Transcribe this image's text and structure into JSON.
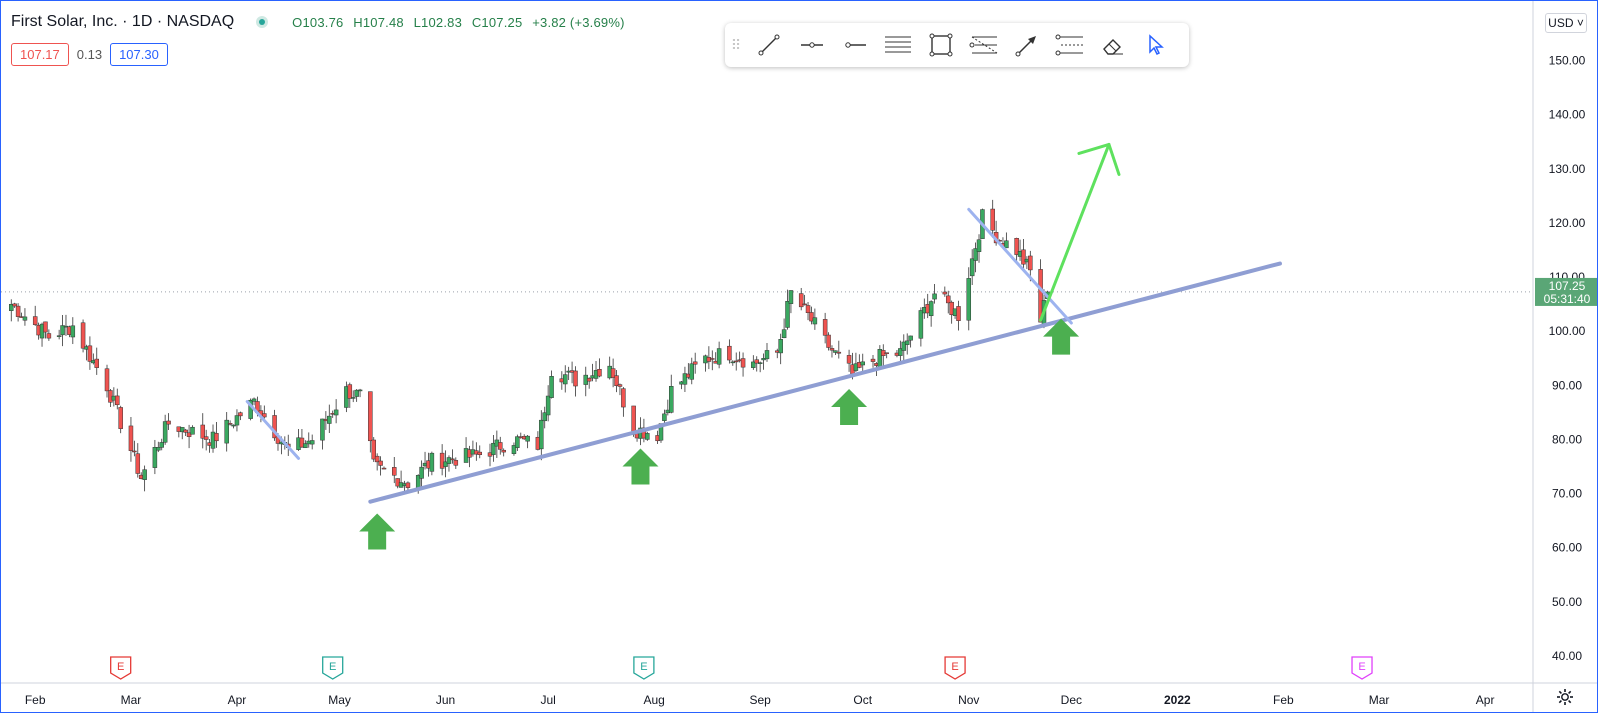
{
  "legend": {
    "symbol_title": "First Solar, Inc. · 1D · NASDAQ",
    "open": "O103.76",
    "high": "H107.48",
    "low": "L102.83",
    "close": "C107.25",
    "change": "+3.82 (+3.69%)"
  },
  "quotes": {
    "sell": "107.17",
    "spread": "0.13",
    "buy": "107.30"
  },
  "currency": "USD ˅",
  "last_price": {
    "price": "107.25",
    "countdown": "05:31:40"
  },
  "toolbar": {
    "tools": [
      "trend-line-icon",
      "horizontal-ray-icon",
      "horizontal-line-icon",
      "parallel-channel-icon",
      "rectangle-icon",
      "fib-retracement-icon",
      "arrow-icon",
      "fib-extension-icon",
      "eraser-icon",
      "cursor-icon"
    ]
  },
  "colors": {
    "up": "#26a69a",
    "up_body": "#3aa860",
    "down": "#ef5350",
    "trendline": "#8f9ed3",
    "resistance": "#9db3ef",
    "projection": "#5ee15e",
    "support_arrow": "#4caf50",
    "axis_text": "#131722",
    "last_price_bg": "#5aa676"
  },
  "chart_data": {
    "type": "candlestick",
    "symbol": "First Solar, Inc.",
    "interval": "1D",
    "exchange": "NASDAQ",
    "y_axis": {
      "ticks": [
        40,
        50,
        60,
        70,
        80,
        90,
        100,
        110,
        120,
        130,
        140,
        150
      ],
      "tick_labels": [
        "40.00",
        "50.00",
        "60.00",
        "70.00",
        "80.00",
        "90.00",
        "100.00",
        "110.00",
        "120.00",
        "130.00",
        "140.00",
        "150.00"
      ],
      "range": [
        35,
        161
      ]
    },
    "x_axis": {
      "tick_labels": [
        "Feb",
        "Mar",
        "Apr",
        "May",
        "Jun",
        "Jul",
        "Aug",
        "Sep",
        "Oct",
        "Nov",
        "Dec",
        "2022",
        "Feb",
        "Mar",
        "Apr"
      ],
      "range": [
        "2021-01-22",
        "2022-04-15"
      ]
    },
    "x_ticks": [
      "2021-02-01",
      "2021-03-01",
      "2021-04-01",
      "2021-05-01",
      "2021-06-01",
      "2021-07-01",
      "2021-08-01",
      "2021-09-01",
      "2021-10-01",
      "2021-11-01",
      "2021-12-01",
      "2022-01-01",
      "2022-02-01",
      "2022-03-01",
      "2022-04-01"
    ],
    "anchors": [
      {
        "date": "2021-01-25",
        "close": 105
      },
      {
        "date": "2021-02-05",
        "close": 99
      },
      {
        "date": "2021-02-12",
        "close": 101
      },
      {
        "date": "2021-02-22",
        "close": 90
      },
      {
        "date": "2021-03-04",
        "close": 73
      },
      {
        "date": "2021-03-12",
        "close": 83
      },
      {
        "date": "2021-03-25",
        "close": 80
      },
      {
        "date": "2021-04-06",
        "close": 87
      },
      {
        "date": "2021-04-16",
        "close": 78
      },
      {
        "date": "2021-04-23",
        "close": 80
      },
      {
        "date": "2021-05-03",
        "close": 89
      },
      {
        "date": "2021-05-07",
        "close": 88
      },
      {
        "date": "2021-05-11",
        "close": 75
      },
      {
        "date": "2021-05-21",
        "close": 72
      },
      {
        "date": "2021-05-28",
        "close": 76
      },
      {
        "date": "2021-06-10",
        "close": 77
      },
      {
        "date": "2021-06-21",
        "close": 80
      },
      {
        "date": "2021-06-28",
        "close": 79
      },
      {
        "date": "2021-07-02",
        "close": 93
      },
      {
        "date": "2021-07-09",
        "close": 91
      },
      {
        "date": "2021-07-19",
        "close": 94
      },
      {
        "date": "2021-07-26",
        "close": 82
      },
      {
        "date": "2021-08-02",
        "close": 81
      },
      {
        "date": "2021-08-06",
        "close": 89
      },
      {
        "date": "2021-08-16",
        "close": 95
      },
      {
        "date": "2021-08-23",
        "close": 96
      },
      {
        "date": "2021-08-30",
        "close": 94
      },
      {
        "date": "2021-09-06",
        "close": 96
      },
      {
        "date": "2021-09-10",
        "close": 107
      },
      {
        "date": "2021-09-16",
        "close": 102
      },
      {
        "date": "2021-09-20",
        "close": 98
      },
      {
        "date": "2021-09-28",
        "close": 92
      },
      {
        "date": "2021-10-05",
        "close": 95
      },
      {
        "date": "2021-10-12",
        "close": 96
      },
      {
        "date": "2021-10-22",
        "close": 107
      },
      {
        "date": "2021-10-29",
        "close": 103
      },
      {
        "date": "2021-11-05",
        "close": 121
      },
      {
        "date": "2021-11-10",
        "close": 117
      },
      {
        "date": "2021-11-15",
        "close": 115
      },
      {
        "date": "2021-11-19",
        "close": 111
      },
      {
        "date": "2021-11-22",
        "close": 102
      },
      {
        "date": "2021-11-24",
        "close": 107.25
      }
    ],
    "last_price": 107.25,
    "earnings_markers": [
      {
        "date": "2021-02-26",
        "label": "E",
        "color": "#e53935"
      },
      {
        "date": "2021-04-29",
        "label": "E",
        "color": "#26a69a"
      },
      {
        "date": "2021-07-29",
        "label": "E",
        "color": "#26a69a"
      },
      {
        "date": "2021-10-28",
        "label": "E",
        "color": "#e53935"
      },
      {
        "date": "2022-02-24",
        "label": "E",
        "color": "#e040fb"
      }
    ],
    "drawings": {
      "support_trendline": {
        "points": [
          {
            "date": "2021-05-10",
            "value": 68.5
          },
          {
            "date": "2022-01-31",
            "value": 112.5
          }
        ]
      },
      "short_resistance_april": {
        "points": [
          {
            "date": "2021-04-04",
            "value": 87
          },
          {
            "date": "2021-04-19",
            "value": 76.5
          }
        ]
      },
      "resistance_november": {
        "points": [
          {
            "date": "2021-11-01",
            "value": 122.5
          },
          {
            "date": "2021-12-01",
            "value": 101.5
          }
        ]
      },
      "projection_arrow": {
        "points": [
          {
            "date": "2021-11-22",
            "value": 102
          },
          {
            "date": "2021-12-12",
            "value": 134.5
          }
        ]
      },
      "support_arrows": [
        {
          "date": "2021-05-12",
          "value": 63
        },
        {
          "date": "2021-07-28",
          "value": 75
        },
        {
          "date": "2021-09-27",
          "value": 86
        },
        {
          "date": "2021-11-28",
          "value": 99
        }
      ]
    }
  }
}
